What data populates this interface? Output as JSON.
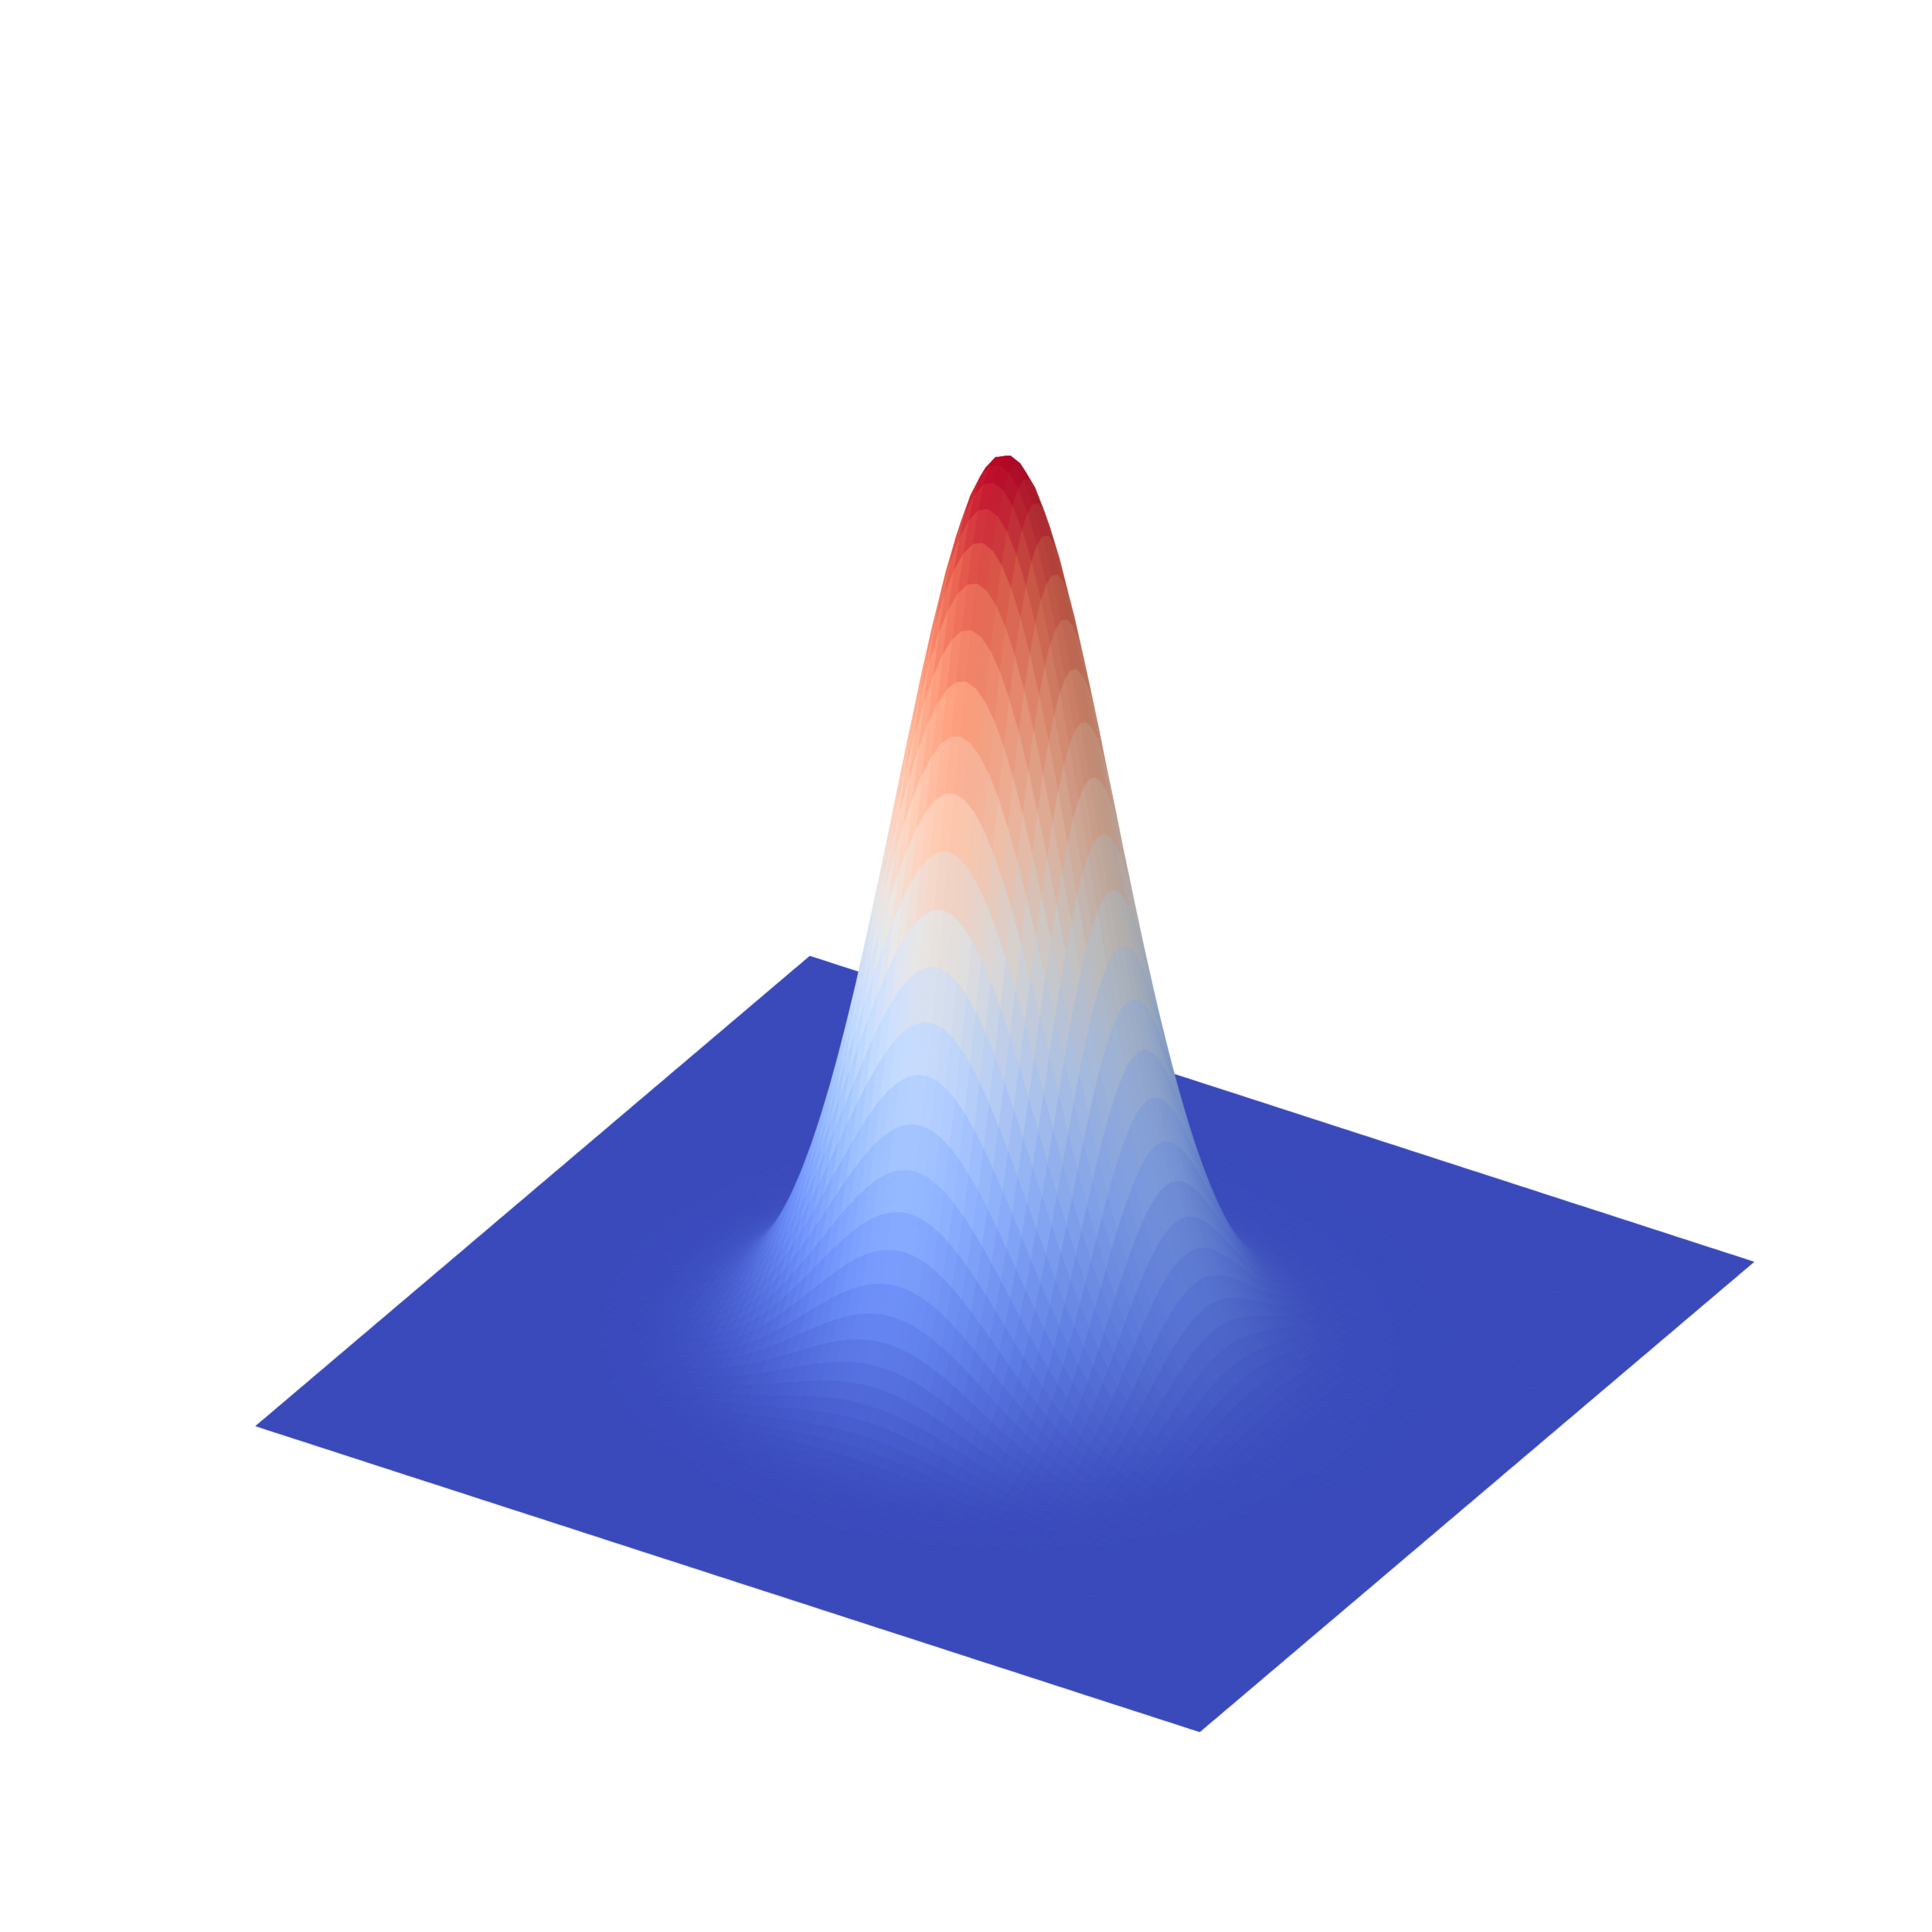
{
  "chart_data": {
    "type": "surface3d",
    "title": "",
    "function": "gaussian",
    "center": [
      0,
      0
    ],
    "peak_value": 1.0,
    "sigma": 1.0,
    "x_range": [
      -5,
      5
    ],
    "y_range": [
      -5,
      5
    ],
    "z_range": [
      0,
      1.0
    ],
    "grid_resolution": 100,
    "colormap": "coolwarm",
    "colormap_low": "#3b4cc0",
    "colormap_mid": "#dddddd",
    "colormap_high": "#b40426",
    "axes_visible": false,
    "grid": false,
    "view": {
      "elevation_deg": 30,
      "azimuth_deg": -60
    }
  }
}
